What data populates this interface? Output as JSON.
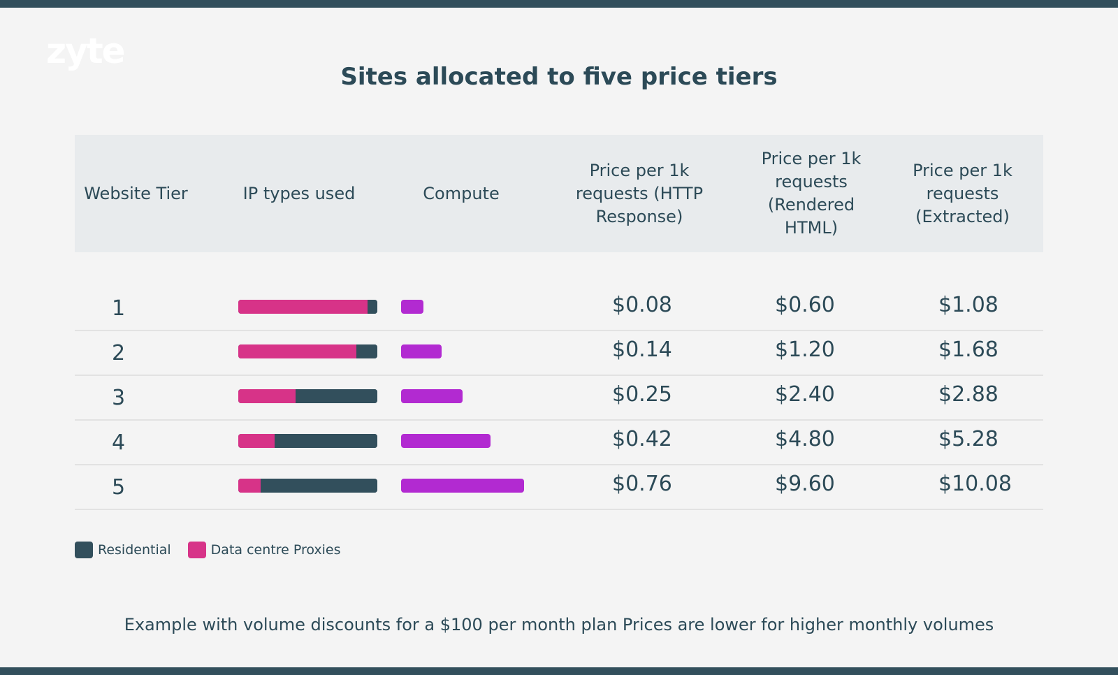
{
  "brand": {
    "logo": "zyte"
  },
  "colors": {
    "residential": "#324f5c",
    "data_centre": "#d73388",
    "compute": "#b22ad1",
    "header_bg": "#e8ebed",
    "text": "#2c4a57"
  },
  "chart_data": {
    "type": "table",
    "title": "Sites allocated to five price tiers",
    "columns": [
      "Website Tier",
      "IP types used",
      "Compute",
      "Price per 1k requests (HTTP Response)",
      "Price per 1k requests (Rendered HTML)",
      "Price per 1k requests (Extracted)"
    ],
    "rows": [
      {
        "tier": "1",
        "data_centre_share": 0.93,
        "residential_share": 0.07,
        "compute_level": 0.18,
        "http": "$0.08",
        "rendered": "$0.60",
        "extracted": "$1.08"
      },
      {
        "tier": "2",
        "data_centre_share": 0.85,
        "residential_share": 0.15,
        "compute_level": 0.33,
        "http": "$0.14",
        "rendered": "$1.20",
        "extracted": "$1.68"
      },
      {
        "tier": "3",
        "data_centre_share": 0.41,
        "residential_share": 0.59,
        "compute_level": 0.5,
        "http": "$0.25",
        "rendered": "$2.40",
        "extracted": "$2.88"
      },
      {
        "tier": "4",
        "data_centre_share": 0.26,
        "residential_share": 0.74,
        "compute_level": 0.73,
        "http": "$0.42",
        "rendered": "$4.80",
        "extracted": "$5.28"
      },
      {
        "tier": "5",
        "data_centre_share": 0.16,
        "residential_share": 0.84,
        "compute_level": 1.0,
        "http": "$0.76",
        "rendered": "$9.60",
        "extracted": "$10.08"
      }
    ],
    "legend": [
      "Residential",
      "Data centre Proxies"
    ],
    "legend_position": "bottom-left",
    "footnote": "Example with volume discounts for a $100 per month plan Prices are lower for higher monthly volumes"
  }
}
